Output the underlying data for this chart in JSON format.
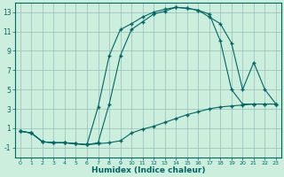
{
  "xlabel": "Humidex (Indice chaleur)",
  "bg_color": "#cceedd",
  "grid_color": "#99bbbb",
  "line_color": "#006666",
  "xlim": [
    -0.5,
    23.5
  ],
  "ylim": [
    -2.0,
    14.0
  ],
  "xticks": [
    0,
    1,
    2,
    3,
    4,
    5,
    6,
    7,
    8,
    9,
    10,
    11,
    12,
    13,
    14,
    15,
    16,
    17,
    18,
    19,
    20,
    21,
    22,
    23
  ],
  "yticks": [
    -1,
    1,
    3,
    5,
    7,
    9,
    11,
    13
  ],
  "line1_x": [
    0,
    1,
    2,
    3,
    4,
    5,
    6,
    7,
    8,
    9,
    10,
    11,
    12,
    13,
    14,
    15,
    16,
    17,
    18,
    19,
    20,
    21,
    22,
    23
  ],
  "line1_y": [
    0.7,
    0.5,
    -0.4,
    -0.5,
    -0.5,
    -0.6,
    -0.7,
    -0.6,
    -0.5,
    -0.3,
    0.5,
    0.9,
    1.2,
    1.6,
    2.0,
    2.4,
    2.7,
    3.0,
    3.2,
    3.3,
    3.4,
    3.5,
    3.5,
    3.5
  ],
  "line2_x": [
    0,
    1,
    2,
    3,
    4,
    5,
    6,
    7,
    8,
    9,
    10,
    11,
    12,
    13,
    14,
    15,
    16,
    17,
    18,
    19,
    20,
    21,
    22,
    23
  ],
  "line2_y": [
    0.7,
    0.5,
    -0.4,
    -0.5,
    -0.5,
    -0.6,
    -0.7,
    3.2,
    8.5,
    11.2,
    11.8,
    12.5,
    13.0,
    13.3,
    13.5,
    13.4,
    13.2,
    12.5,
    11.8,
    9.8,
    5.0,
    7.8,
    5.0,
    3.5
  ],
  "line3_x": [
    0,
    1,
    2,
    3,
    4,
    5,
    6,
    7,
    8,
    9,
    10,
    11,
    12,
    13,
    14,
    15,
    16,
    17,
    18,
    19,
    20,
    21,
    22,
    23
  ],
  "line3_y": [
    0.7,
    0.5,
    -0.4,
    -0.5,
    -0.5,
    -0.6,
    -0.7,
    -0.5,
    3.5,
    8.5,
    11.2,
    12.0,
    12.8,
    13.1,
    13.5,
    13.4,
    13.2,
    12.8,
    10.0,
    5.0,
    3.5,
    3.5,
    3.5,
    3.5
  ]
}
